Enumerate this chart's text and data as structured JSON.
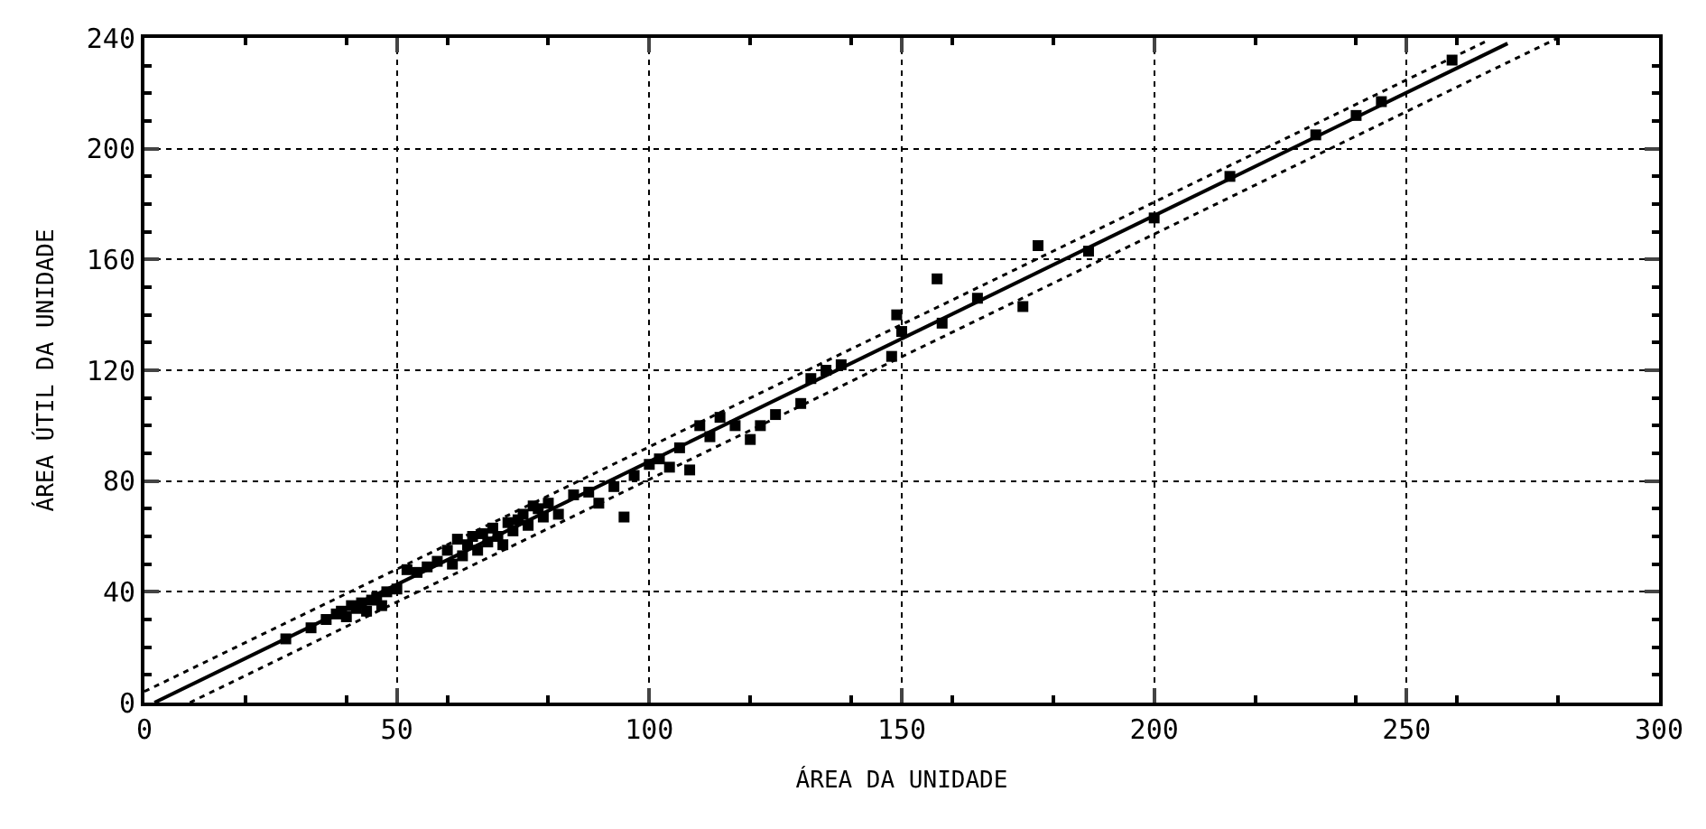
{
  "chart_data": {
    "type": "scatter",
    "xlabel": "ÁREA DA UNIDADE",
    "ylabel": "ÁREA ÚTIL DA UNIDADE",
    "xlim": [
      0,
      300
    ],
    "ylim": [
      0,
      240
    ],
    "xticks": [
      0,
      50,
      100,
      150,
      200,
      250,
      300
    ],
    "yticks": [
      0,
      40,
      80,
      120,
      160,
      200,
      240
    ],
    "grid": true,
    "legend": false,
    "series": [
      {
        "marker": "square",
        "color": "#000000",
        "x": [
          28,
          33,
          36,
          38,
          39,
          40,
          41,
          42,
          43,
          44,
          45,
          46,
          47,
          48,
          50,
          52,
          54,
          56,
          58,
          60,
          61,
          62,
          63,
          64,
          65,
          66,
          67,
          68,
          69,
          70,
          71,
          72,
          73,
          74,
          75,
          76,
          77,
          78,
          79,
          80,
          82,
          85,
          88,
          90,
          93,
          95,
          97,
          100,
          102,
          104,
          106,
          108,
          110,
          112,
          114,
          117,
          120,
          122,
          125,
          130,
          132,
          135,
          138,
          148,
          149,
          150,
          157,
          158,
          165,
          174,
          177,
          187,
          200,
          215,
          232,
          240,
          245,
          259
        ],
        "values": [
          23,
          27,
          30,
          32,
          33,
          31,
          35,
          34,
          36,
          33,
          37,
          38,
          35,
          40,
          41,
          48,
          47,
          49,
          51,
          55,
          50,
          59,
          53,
          57,
          60,
          55,
          61,
          58,
          63,
          60,
          57,
          65,
          62,
          66,
          68,
          64,
          71,
          70,
          67,
          72,
          68,
          75,
          76,
          72,
          78,
          67,
          82,
          86,
          88,
          85,
          92,
          84,
          100,
          96,
          103,
          100,
          95,
          100,
          104,
          108,
          117,
          120,
          122,
          125,
          140,
          134,
          153,
          137,
          146,
          143,
          165,
          163,
          175,
          190,
          205,
          212,
          217,
          232
        ]
      },
      {
        "type": "line",
        "marker": "none",
        "line_style": "solid",
        "color": "#000000",
        "x": [
          2,
          270
        ],
        "values": [
          0,
          238
        ]
      },
      {
        "type": "line",
        "marker": "none",
        "line_style": "dotted",
        "color": "#000000",
        "x": [
          0,
          266
        ],
        "values": [
          4,
          239
        ]
      },
      {
        "type": "line",
        "marker": "none",
        "line_style": "dotted",
        "color": "#000000",
        "x": [
          9,
          280
        ],
        "values": [
          0,
          240
        ]
      }
    ]
  }
}
